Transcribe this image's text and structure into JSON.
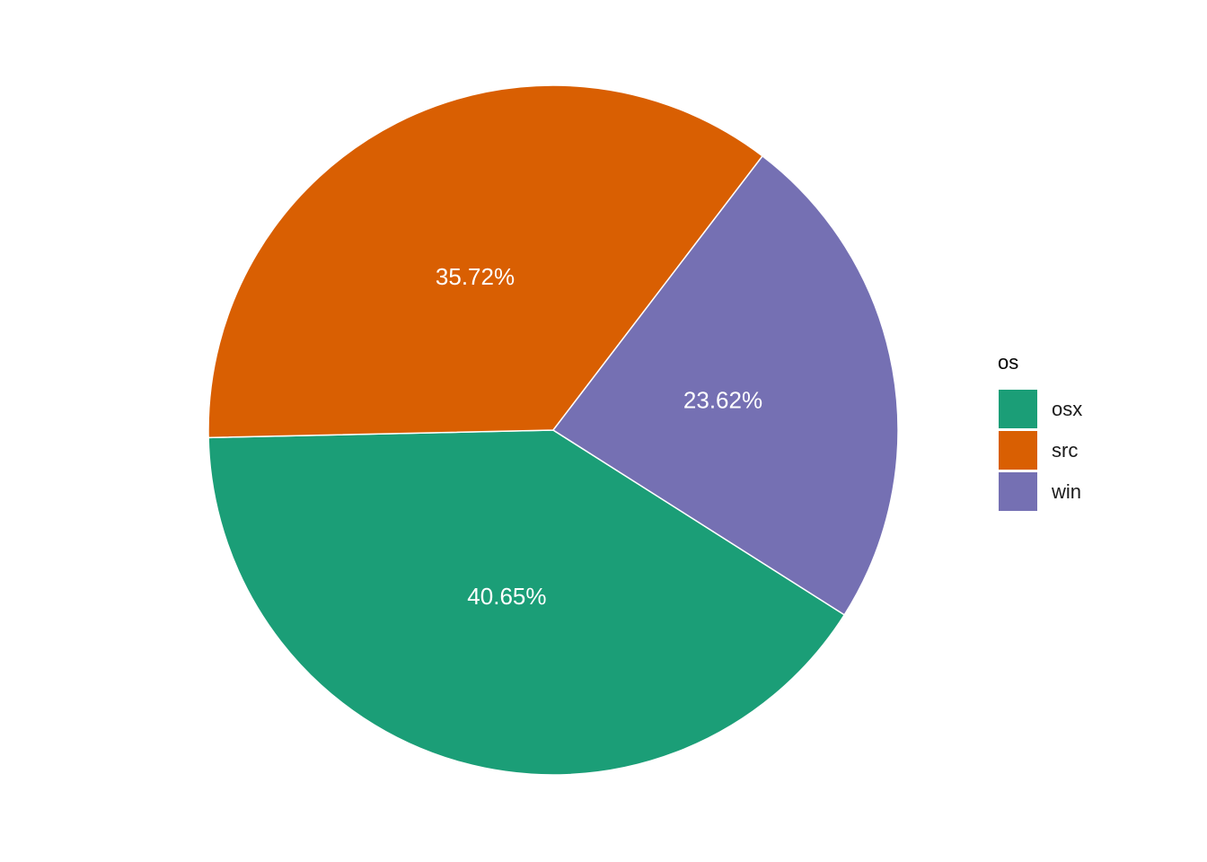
{
  "chart_data": {
    "type": "pie",
    "legend_title": "os",
    "legend_position": "right",
    "slices": [
      {
        "name": "osx",
        "value": 40.65,
        "label": "40.65%",
        "color": "#1B9E77"
      },
      {
        "name": "src",
        "value": 35.72,
        "label": "35.72%",
        "color": "#D95F02"
      },
      {
        "name": "win",
        "value": 23.62,
        "label": "23.62%",
        "color": "#7570B3"
      }
    ]
  }
}
